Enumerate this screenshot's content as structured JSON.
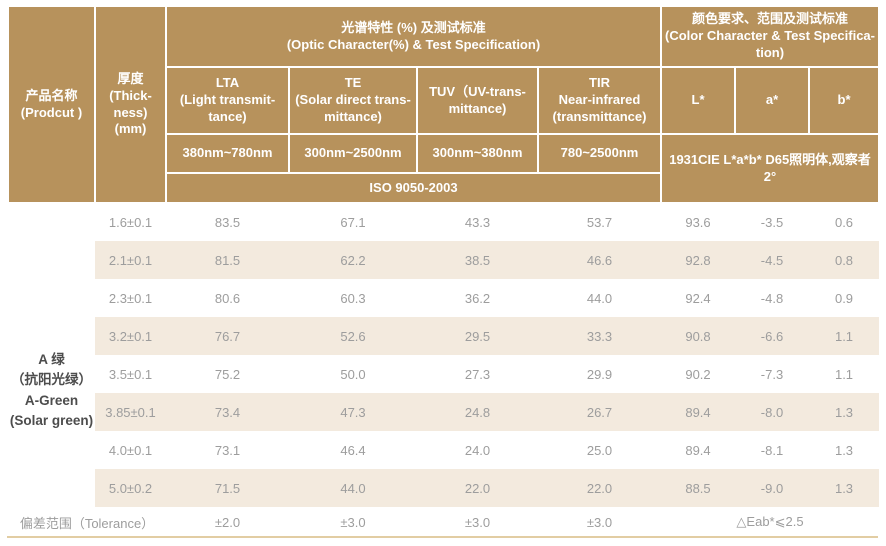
{
  "table": {
    "header": {
      "product": "产品名称\n(Prodcut )",
      "thickness": "厚度\n(Thick-\nness)\n(mm)",
      "optic_group": "光谱特性 (%) 及测试标准\n(Optic Character(%) & Test Specification)",
      "color_group": "颜色要求、范围及测试标准\n(Color Character & Test Specifica-\ntion)",
      "lta": "LTA\n(Light transmit-\ntance)",
      "te": "TE\n(Solar direct trans-\nmittance)",
      "tuv": "TUV（UV-trans-\nmittance)",
      "tir": "TIR\nNear-infrared\n(transmittance)",
      "l_star": "L*",
      "a_star": "a*",
      "b_star": "b*",
      "band_lta": "380nm~780nm",
      "band_te": "300nm~2500nm",
      "band_tuv": "300nm~380nm",
      "band_tir": "780~2500nm",
      "iso": "ISO 9050-2003",
      "cie": "1931CIE L*a*b* D65照明体,观察者2°"
    },
    "product_group": "A 绿\n（抗阳光绿）\nA-Green\n(Solar green)",
    "rows": [
      {
        "thickness": "1.6±0.1",
        "values": [
          "83.5",
          "67.1",
          "43.3",
          "53.7",
          "93.6",
          "-3.5",
          "0.6"
        ]
      },
      {
        "thickness": "2.1±0.1",
        "values": [
          "81.5",
          "62.2",
          "38.5",
          "46.6",
          "92.8",
          "-4.5",
          "0.8"
        ]
      },
      {
        "thickness": "2.3±0.1",
        "values": [
          "80.6",
          "60.3",
          "36.2",
          "44.0",
          "92.4",
          "-4.8",
          "0.9"
        ]
      },
      {
        "thickness": "3.2±0.1",
        "values": [
          "76.7",
          "52.6",
          "29.5",
          "33.3",
          "90.8",
          "-6.6",
          "1.1"
        ]
      },
      {
        "thickness": "3.5±0.1",
        "values": [
          "75.2",
          "50.0",
          "27.3",
          "29.9",
          "90.2",
          "-7.3",
          "1.1"
        ]
      },
      {
        "thickness": "3.85±0.1",
        "values": [
          "73.4",
          "47.3",
          "24.8",
          "26.7",
          "89.4",
          "-8.0",
          "1.3"
        ]
      },
      {
        "thickness": "4.0±0.1",
        "values": [
          "73.1",
          "46.4",
          "24.0",
          "25.0",
          "89.4",
          "-8.1",
          "1.3"
        ]
      },
      {
        "thickness": "5.0±0.2",
        "values": [
          "71.5",
          "44.0",
          "22.0",
          "22.0",
          "88.5",
          "-9.0",
          "1.3"
        ]
      }
    ],
    "tolerance": {
      "label": "偏差范围（Tolerance）",
      "values": [
        "±2.0",
        "±3.0",
        "±3.0",
        "±3.0"
      ],
      "eab": "△Eab*⩽2.5"
    }
  },
  "colors": {
    "header_bg": "#b7925c",
    "header_text": "#ffffff",
    "alt_row_bg": "#f3eade",
    "data_text": "#9d9d9d",
    "group_text": "#4d4d4d",
    "bottom_line": "#e2cda3"
  }
}
